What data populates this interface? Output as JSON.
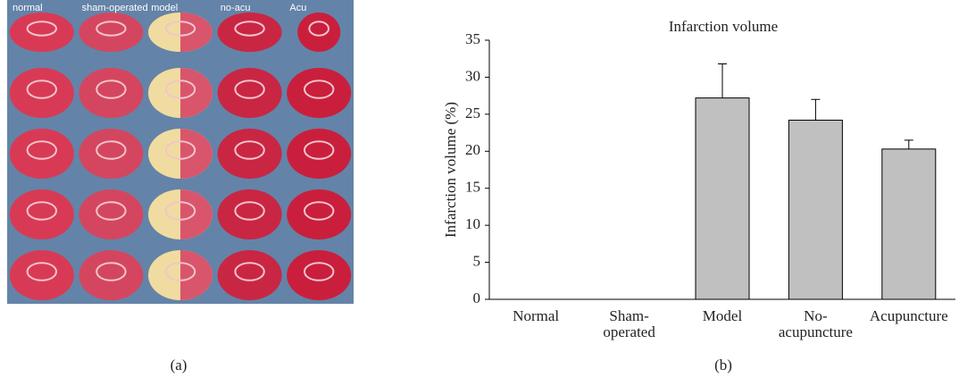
{
  "panel_a": {
    "labels": [
      "normal",
      "sham-operated",
      "model",
      "no-acu",
      "Acu"
    ],
    "caption": "(a)"
  },
  "panel_b": {
    "caption": "(b)"
  },
  "chart_data": {
    "type": "bar",
    "title": "Infarction volume",
    "y_label": "Infarction volume (%)",
    "categories": [
      [
        "Normal"
      ],
      [
        "Sham-",
        "operated"
      ],
      [
        "Model"
      ],
      [
        "No-",
        "acupuncture"
      ],
      [
        "Acupuncture"
      ]
    ],
    "values": [
      0,
      0,
      27.2,
      24.2,
      20.3
    ],
    "errors": [
      0,
      0,
      4.6,
      2.8,
      1.2
    ],
    "color": "#c0c0c0",
    "ylim": [
      0,
      35
    ],
    "yticks": [
      0,
      5,
      10,
      15,
      20,
      25,
      30,
      35
    ],
    "grid": false
  }
}
